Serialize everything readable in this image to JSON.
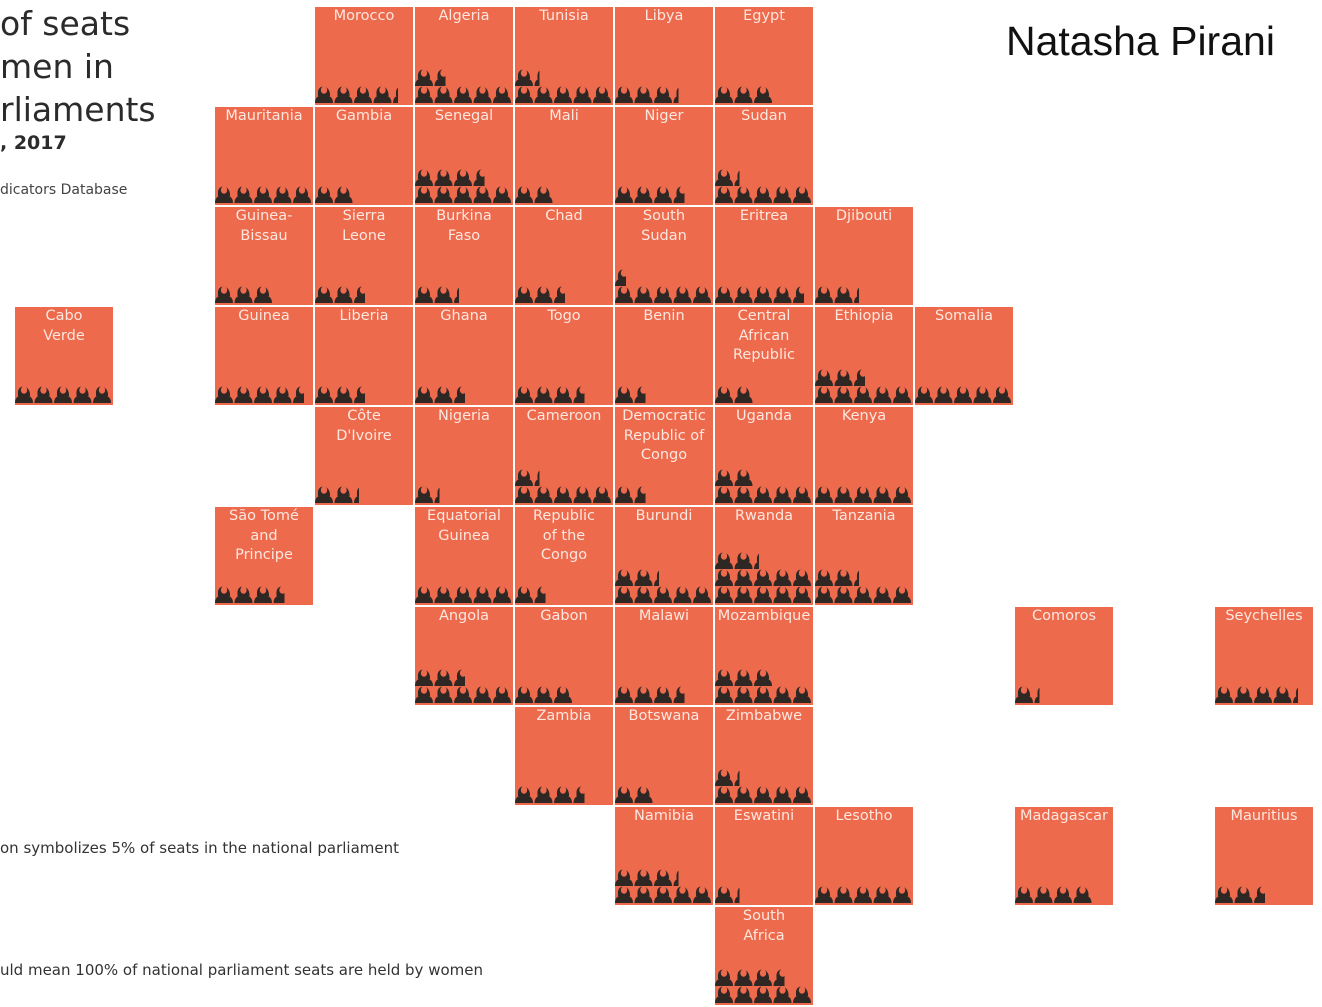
{
  "title": {
    "lines": [
      "of seats",
      "men in",
      "rliaments"
    ],
    "subtitle": ", 2017",
    "source": "dicators Database"
  },
  "author": "Natasha Pirani",
  "notes": {
    "icon_meaning": "on symbolizes 5% of seats in the national parliament",
    "full_meaning": "uld mean 100% of national parliament seats are held by women"
  },
  "colors": {
    "tile": "#ed6a4d",
    "tile_text": "#fde7df",
    "icon": "#2f2723"
  },
  "chart_data": {
    "type": "tile-map pictogram",
    "unit": "one woman icon = 5% of seats in the national parliament",
    "countries": [
      {
        "name": "Morocco",
        "label": [
          "Morocco"
        ],
        "row": 0,
        "col": 3,
        "icons": 4.3
      },
      {
        "name": "Algeria",
        "label": [
          "Algeria"
        ],
        "row": 0,
        "col": 4,
        "icons": 6.6
      },
      {
        "name": "Tunisia",
        "label": [
          "Tunisia"
        ],
        "row": 0,
        "col": 5,
        "icons": 6.3
      },
      {
        "name": "Libya",
        "label": [
          "Libya"
        ],
        "row": 0,
        "col": 6,
        "icons": 3.3
      },
      {
        "name": "Egypt",
        "label": [
          "Egypt"
        ],
        "row": 0,
        "col": 7,
        "icons": 3
      },
      {
        "name": "Mauritania",
        "label": [
          "Mauritania"
        ],
        "row": 1,
        "col": 2,
        "icons": 5
      },
      {
        "name": "Gambia",
        "label": [
          "Gambia"
        ],
        "row": 1,
        "col": 3,
        "icons": 2
      },
      {
        "name": "Senegal",
        "label": [
          "Senegal"
        ],
        "row": 1,
        "col": 4,
        "icons": 8.6
      },
      {
        "name": "Mali",
        "label": [
          "Mali"
        ],
        "row": 1,
        "col": 5,
        "icons": 2
      },
      {
        "name": "Niger",
        "label": [
          "Niger"
        ],
        "row": 1,
        "col": 6,
        "icons": 3.6
      },
      {
        "name": "Sudan",
        "label": [
          "Sudan"
        ],
        "row": 1,
        "col": 7,
        "icons": 6.3
      },
      {
        "name": "Guinea-Bissau",
        "label": [
          "Guinea-",
          "Bissau"
        ],
        "row": 2,
        "col": 2,
        "icons": 3
      },
      {
        "name": "Sierra Leone",
        "label": [
          "Sierra",
          "Leone"
        ],
        "row": 2,
        "col": 3,
        "icons": 2.6
      },
      {
        "name": "Burkina Faso",
        "label": [
          "Burkina",
          "Faso"
        ],
        "row": 2,
        "col": 4,
        "icons": 2.3
      },
      {
        "name": "Chad",
        "label": [
          "Chad"
        ],
        "row": 2,
        "col": 5,
        "icons": 2.6
      },
      {
        "name": "South Sudan",
        "label": [
          "South",
          "Sudan"
        ],
        "row": 2,
        "col": 6,
        "icons": 5.6
      },
      {
        "name": "Eritrea",
        "label": [
          "Eritrea"
        ],
        "row": 2,
        "col": 7,
        "icons": 4.6
      },
      {
        "name": "Djibouti",
        "label": [
          "Djibouti"
        ],
        "row": 2,
        "col": 8,
        "icons": 2.3
      },
      {
        "name": "Cabo Verde",
        "label": [
          "Cabo",
          "Verde"
        ],
        "row": 3,
        "col": 0,
        "icons": 5
      },
      {
        "name": "Guinea",
        "label": [
          "Guinea"
        ],
        "row": 3,
        "col": 2,
        "icons": 4.6
      },
      {
        "name": "Liberia",
        "label": [
          "Liberia"
        ],
        "row": 3,
        "col": 3,
        "icons": 2.6
      },
      {
        "name": "Ghana",
        "label": [
          "Ghana"
        ],
        "row": 3,
        "col": 4,
        "icons": 2.6
      },
      {
        "name": "Togo",
        "label": [
          "Togo"
        ],
        "row": 3,
        "col": 5,
        "icons": 3.6
      },
      {
        "name": "Benin",
        "label": [
          "Benin"
        ],
        "row": 3,
        "col": 6,
        "icons": 1.6
      },
      {
        "name": "Central African Republic",
        "label": [
          "Central",
          "African",
          "Republic"
        ],
        "row": 3,
        "col": 7,
        "icons": 2
      },
      {
        "name": "Ethiopia",
        "label": [
          "Ethiopia"
        ],
        "row": 3,
        "col": 8,
        "icons": 7.6
      },
      {
        "name": "Somalia",
        "label": [
          "Somalia"
        ],
        "row": 3,
        "col": 9,
        "icons": 5
      },
      {
        "name": "Côte D'Ivoire",
        "label": [
          "Côte",
          "D'Ivoire"
        ],
        "row": 4,
        "col": 3,
        "icons": 2.3
      },
      {
        "name": "Nigeria",
        "label": [
          "Nigeria"
        ],
        "row": 4,
        "col": 4,
        "icons": 1.3
      },
      {
        "name": "Cameroon",
        "label": [
          "Cameroon"
        ],
        "row": 4,
        "col": 5,
        "icons": 6.3
      },
      {
        "name": "Democratic Republic of Congo",
        "label": [
          "Democratic",
          "Republic of",
          "Congo"
        ],
        "row": 4,
        "col": 6,
        "icons": 1.6
      },
      {
        "name": "Uganda",
        "label": [
          "Uganda"
        ],
        "row": 4,
        "col": 7,
        "icons": 7
      },
      {
        "name": "Kenya",
        "label": [
          "Kenya"
        ],
        "row": 4,
        "col": 8,
        "icons": 5
      },
      {
        "name": "São Tomé and Principe",
        "label": [
          "São Tomé",
          "and",
          "Principe"
        ],
        "row": 5,
        "col": 2,
        "icons": 3.6
      },
      {
        "name": "Equatorial Guinea",
        "label": [
          "Equatorial",
          "Guinea"
        ],
        "row": 5,
        "col": 4,
        "icons": 5
      },
      {
        "name": "Republic of the Congo",
        "label": [
          "Republic",
          "of the",
          "Congo"
        ],
        "row": 5,
        "col": 5,
        "icons": 1.6
      },
      {
        "name": "Burundi",
        "label": [
          "Burundi"
        ],
        "row": 5,
        "col": 6,
        "icons": 7.3
      },
      {
        "name": "Rwanda",
        "label": [
          "Rwanda"
        ],
        "row": 5,
        "col": 7,
        "icons": 12.3
      },
      {
        "name": "Tanzania",
        "label": [
          "Tanzania"
        ],
        "row": 5,
        "col": 8,
        "icons": 7.3
      },
      {
        "name": "Angola",
        "label": [
          "Angola"
        ],
        "row": 6,
        "col": 4,
        "icons": 7.6
      },
      {
        "name": "Gabon",
        "label": [
          "Gabon"
        ],
        "row": 6,
        "col": 5,
        "icons": 3
      },
      {
        "name": "Malawi",
        "label": [
          "Malawi"
        ],
        "row": 6,
        "col": 6,
        "icons": 3.6
      },
      {
        "name": "Mozambique",
        "label": [
          "Mozambique"
        ],
        "row": 6,
        "col": 7,
        "icons": 8
      },
      {
        "name": "Comoros",
        "label": [
          "Comoros"
        ],
        "row": 6,
        "col": 10,
        "icons": 1.3
      },
      {
        "name": "Seychelles",
        "label": [
          "Seychelles"
        ],
        "row": 6,
        "col": 12,
        "icons": 4.3
      },
      {
        "name": "Zambia",
        "label": [
          "Zambia"
        ],
        "row": 7,
        "col": 5,
        "icons": 3.6
      },
      {
        "name": "Botswana",
        "label": [
          "Botswana"
        ],
        "row": 7,
        "col": 6,
        "icons": 2
      },
      {
        "name": "Zimbabwe",
        "label": [
          "Zimbabwe"
        ],
        "row": 7,
        "col": 7,
        "icons": 6.3
      },
      {
        "name": "Namibia",
        "label": [
          "Namibia"
        ],
        "row": 8,
        "col": 6,
        "icons": 8.3
      },
      {
        "name": "Eswatini",
        "label": [
          "Eswatini"
        ],
        "row": 8,
        "col": 7,
        "icons": 1.3
      },
      {
        "name": "Lesotho",
        "label": [
          "Lesotho"
        ],
        "row": 8,
        "col": 8,
        "icons": 5
      },
      {
        "name": "Madagascar",
        "label": [
          "Madagascar"
        ],
        "row": 8,
        "col": 10,
        "icons": 4
      },
      {
        "name": "Mauritius",
        "label": [
          "Mauritius"
        ],
        "row": 8,
        "col": 12,
        "icons": 2.6
      },
      {
        "name": "South Africa",
        "label": [
          "South",
          "Africa"
        ],
        "row": 9,
        "col": 7,
        "icons": 8.6
      }
    ]
  }
}
